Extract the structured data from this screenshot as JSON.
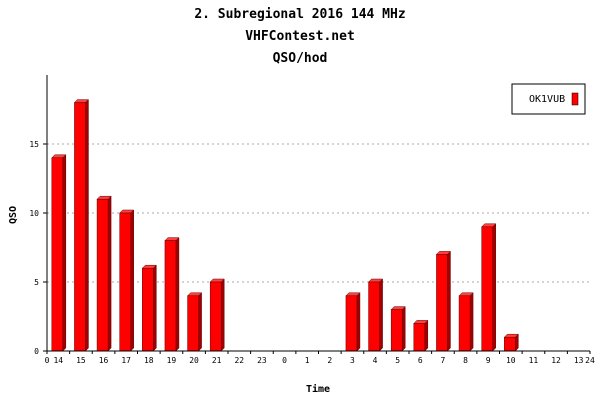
{
  "chart_data": {
    "type": "bar",
    "title": "2. Subregional 2016 144 MHz",
    "subtitle": "VHFContest.net",
    "subtitle2": "QSO/hod",
    "xlabel": "Time",
    "ylabel": "QSO",
    "ylim": [
      0,
      20
    ],
    "yticks": [
      0,
      5,
      10,
      15
    ],
    "grid": true,
    "legend_position": "top-right",
    "x_start_label": "0",
    "x_end_label": "24",
    "categories": [
      "14",
      "15",
      "16",
      "17",
      "18",
      "19",
      "20",
      "21",
      "22",
      "23",
      "0",
      "1",
      "2",
      "3",
      "4",
      "5",
      "6",
      "7",
      "8",
      "9",
      "10",
      "11",
      "12",
      "13"
    ],
    "series": [
      {
        "name": "OK1VUB",
        "color": "#ff0000",
        "values": [
          14,
          18,
          11,
          10,
          6,
          8,
          4,
          5,
          0,
          0,
          0,
          0,
          0,
          4,
          5,
          3,
          2,
          7,
          4,
          9,
          1,
          0,
          0,
          0
        ]
      }
    ]
  }
}
